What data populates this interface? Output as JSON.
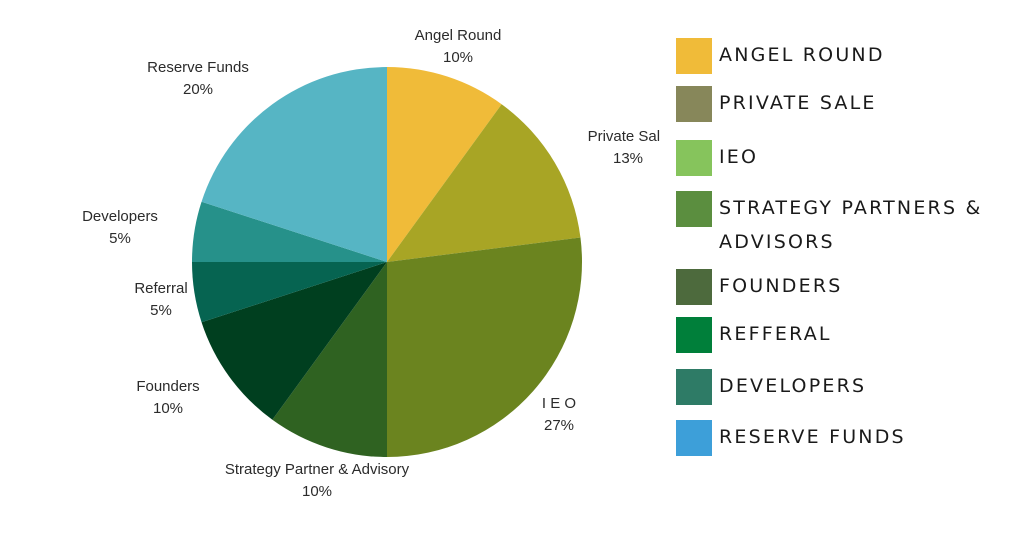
{
  "chart_data": {
    "type": "pie",
    "title": "",
    "start_angle_deg": 0,
    "direction": "clockwise",
    "slices": [
      {
        "label": "Angel Round",
        "percent_label": "10%",
        "value": 10,
        "color": "#F0BB39"
      },
      {
        "label": "Private Sale",
        "percent_label": "13%",
        "value": 13,
        "color": "#A8A525"
      },
      {
        "label": "I E O",
        "percent_label": "27%",
        "value": 27,
        "color": "#6B841F"
      },
      {
        "label": "Strategy Partner & Advisory",
        "percent_label": "10%",
        "value": 10,
        "color": "#2F6221"
      },
      {
        "label": "Founders",
        "percent_label": "10%",
        "value": 10,
        "color": "#003F1F"
      },
      {
        "label": "Referral",
        "percent_label": "5%",
        "value": 5,
        "color": "#066451"
      },
      {
        "label": "Developers",
        "percent_label": "5%",
        "value": 5,
        "color": "#26918A"
      },
      {
        "label": "Reserve Funds",
        "percent_label": "20%",
        "value": 20,
        "color": "#56B5C4"
      }
    ],
    "legend": {
      "placement": "right",
      "items": [
        {
          "label": "ANGEL ROUND",
          "color": "#F0BB39"
        },
        {
          "label": "PRIVATE SALE",
          "color": "#87875A"
        },
        {
          "label": "IEO",
          "color": "#86C45C"
        },
        {
          "label": "STRATEGY PARTNERS &",
          "label_line2": "ADVISORS",
          "color": "#5B8E3F"
        },
        {
          "label": "FOUNDERS",
          "color": "#4D6A3D"
        },
        {
          "label": "REFFERAL",
          "color": "#007F3A"
        },
        {
          "label": "DEVELOPERS",
          "color": "#2E7B66"
        },
        {
          "label": "RESERVE FUNDS",
          "color": "#3D9FD9"
        }
      ]
    }
  }
}
